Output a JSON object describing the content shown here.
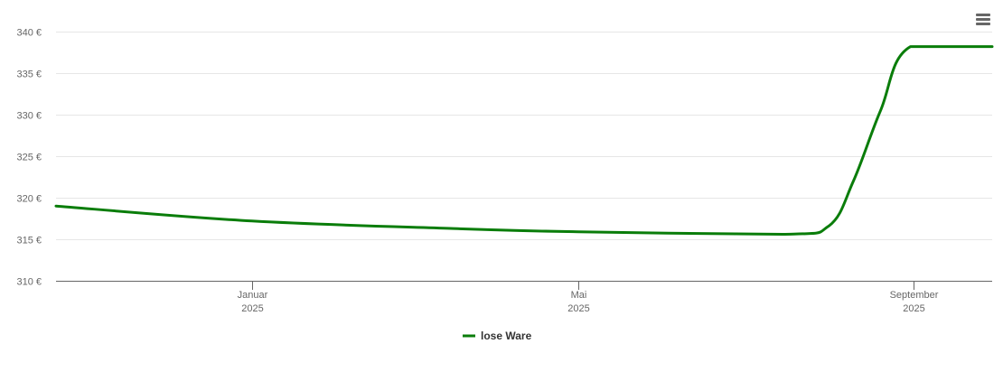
{
  "menu": {
    "icon": "hamburger-menu-icon"
  },
  "chart_data": {
    "type": "line",
    "title": "",
    "xlabel": "",
    "ylabel": "",
    "x_range": [
      "2024-10-21",
      "2025-09-30"
    ],
    "ylim": [
      310,
      340
    ],
    "y_ticks": [
      310,
      315,
      320,
      325,
      330,
      335,
      340
    ],
    "y_tick_labels": [
      "310 €",
      "315 €",
      "320 €",
      "325 €",
      "330 €",
      "335 €",
      "340 €"
    ],
    "x_ticks": [
      {
        "date": "2025-01-01",
        "label_line1": "Januar",
        "label_line2": "2025"
      },
      {
        "date": "2025-05-01",
        "label_line1": "Mai",
        "label_line2": "2025"
      },
      {
        "date": "2025-09-01",
        "label_line1": "September",
        "label_line2": "2025"
      }
    ],
    "grid": true,
    "legend_position": "bottom-center",
    "series": [
      {
        "name": "lose Ware",
        "color": "#0a7d0a",
        "points": [
          {
            "x": "2024-10-21",
            "y": 319.0
          },
          {
            "x": "2025-01-01",
            "y": 317.2
          },
          {
            "x": "2025-03-15",
            "y": 316.3
          },
          {
            "x": "2025-05-01",
            "y": 315.9
          },
          {
            "x": "2025-07-15",
            "y": 315.6
          },
          {
            "x": "2025-08-01",
            "y": 316.6
          },
          {
            "x": "2025-08-10",
            "y": 322.0
          },
          {
            "x": "2025-08-20",
            "y": 330.5
          },
          {
            "x": "2025-08-31",
            "y": 338.2
          },
          {
            "x": "2025-09-30",
            "y": 338.2
          }
        ]
      }
    ]
  }
}
